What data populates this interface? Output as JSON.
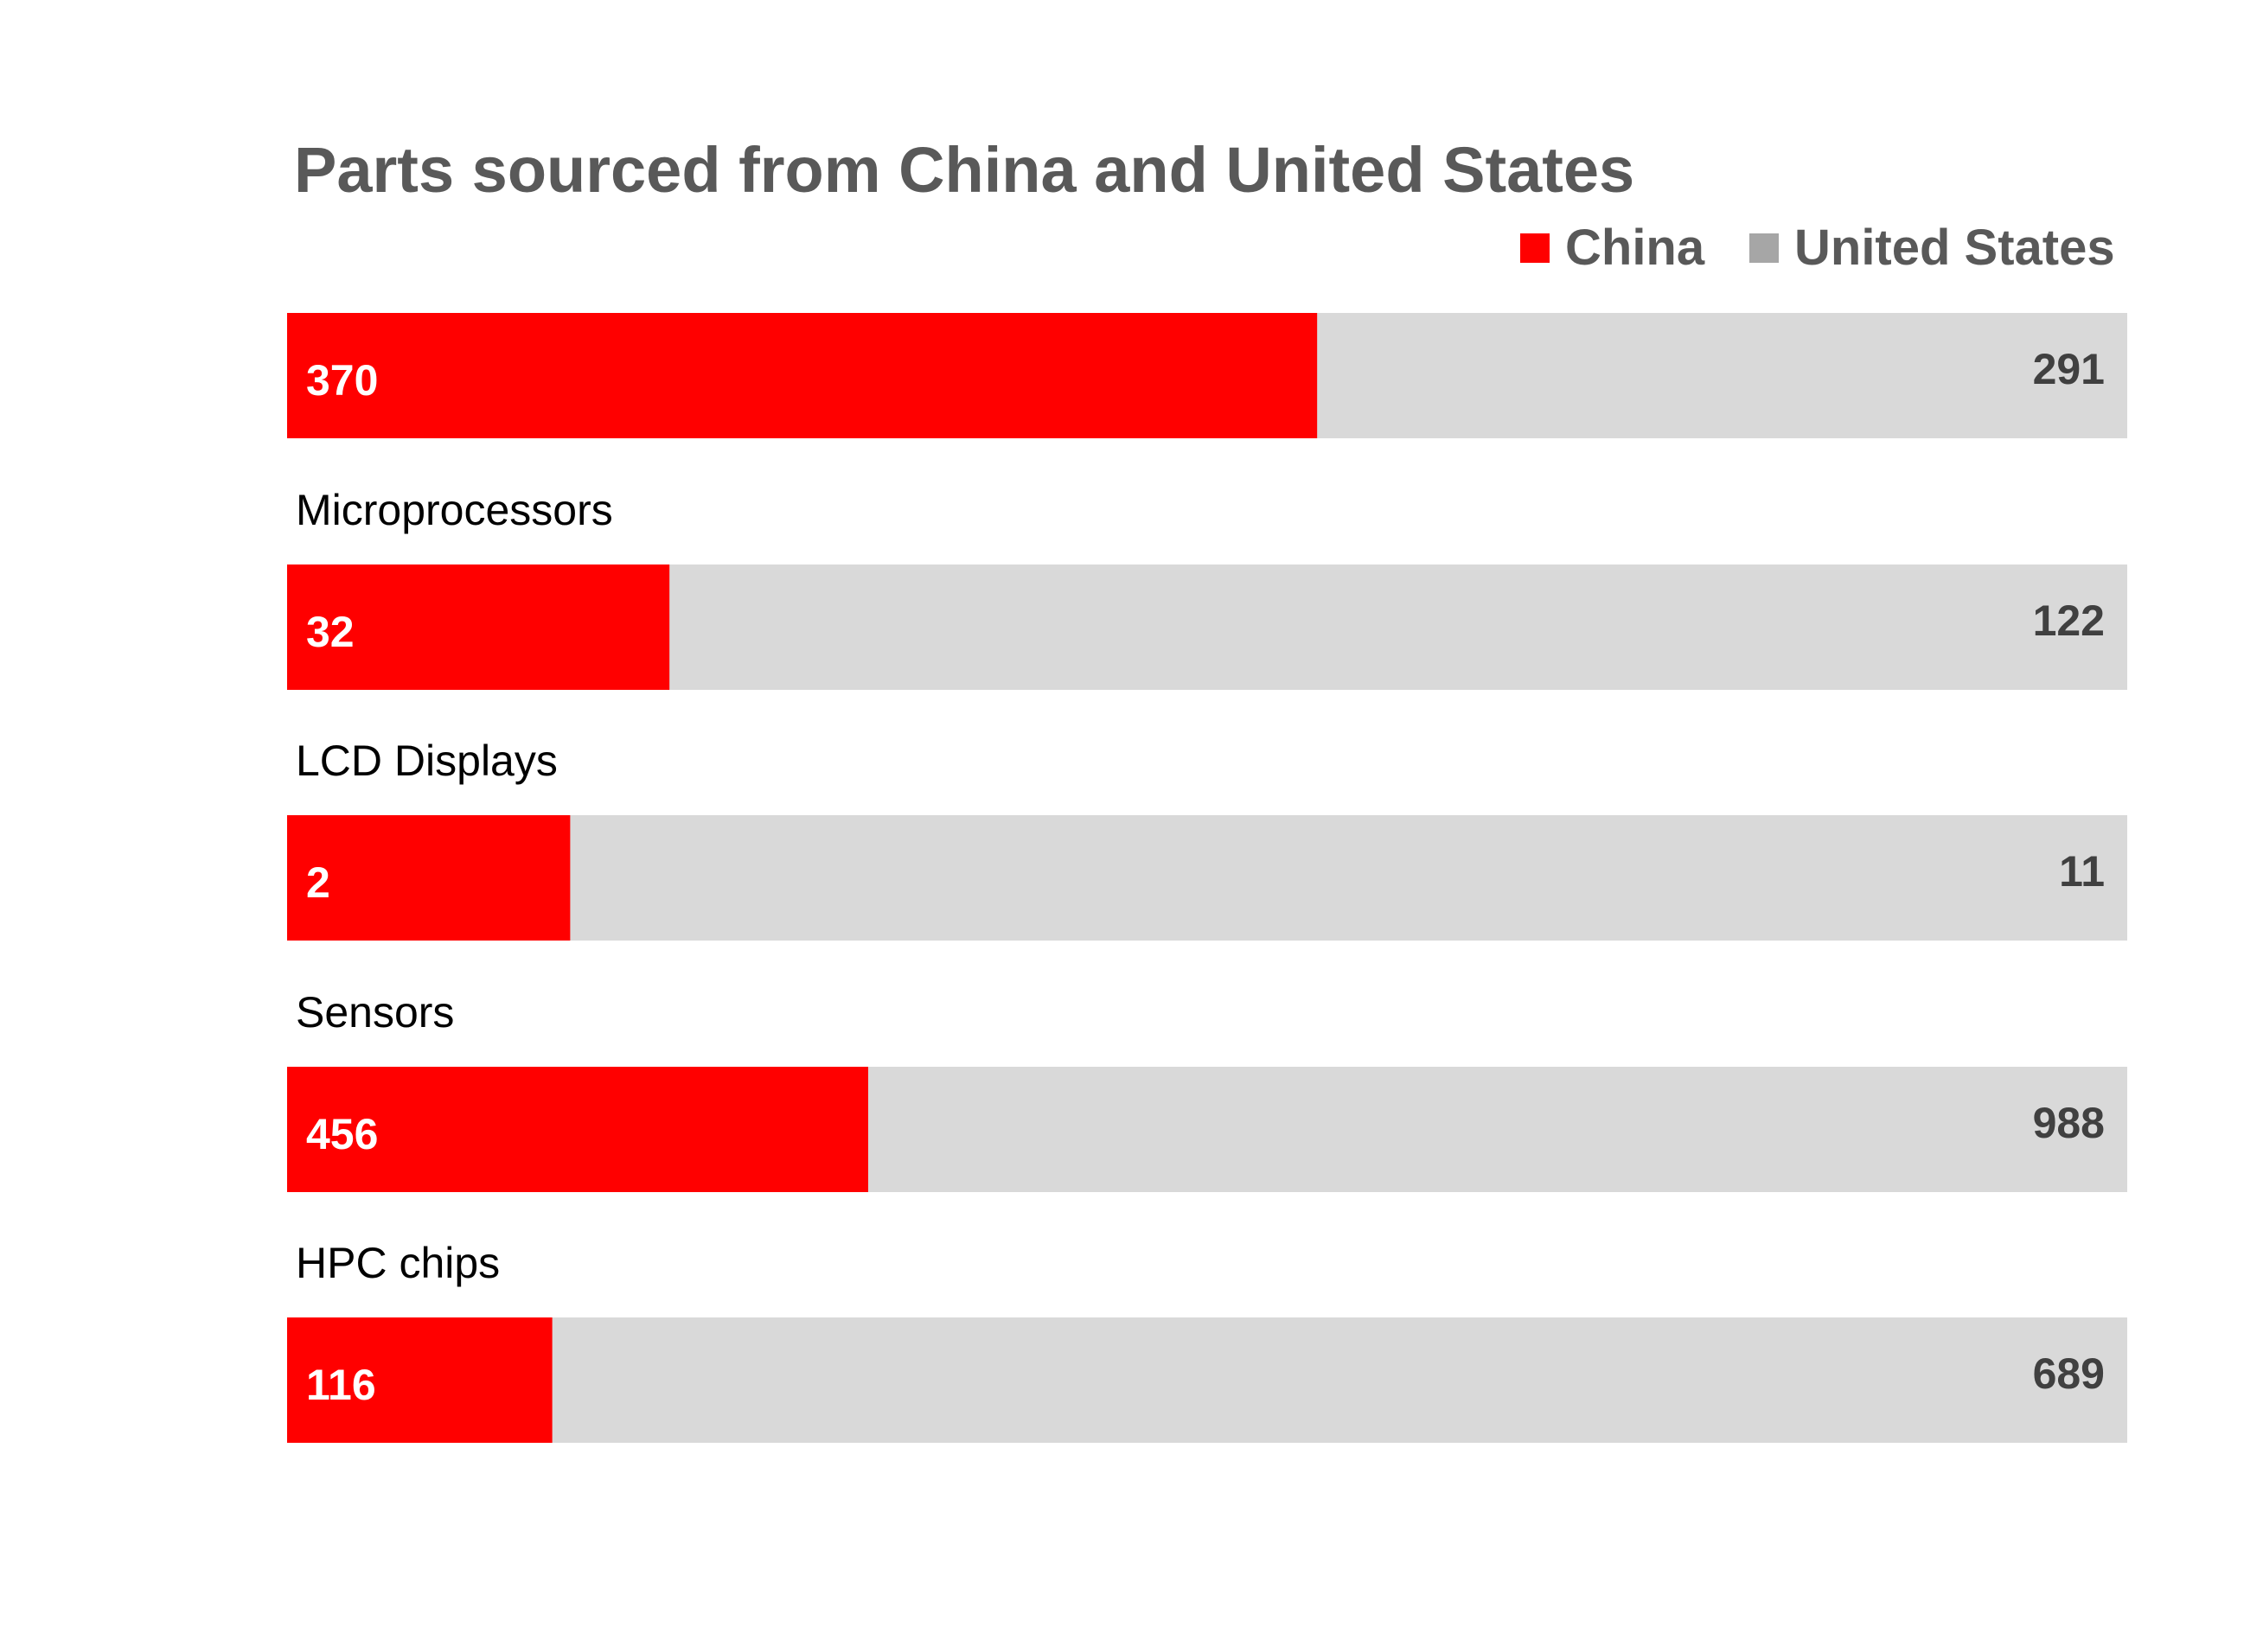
{
  "chart_data": {
    "type": "bar",
    "stacked": "proportional",
    "title": "Parts sourced from China and United States",
    "categories": [
      "",
      "Microprocessors",
      "LCD Displays",
      "Sensors",
      "HPC chips"
    ],
    "series": [
      {
        "name": "China",
        "values": [
          370,
          32,
          2,
          456,
          116
        ]
      },
      {
        "name": "United States",
        "values": [
          291,
          122,
          11,
          988,
          689
        ]
      }
    ],
    "legend_position": "top-right",
    "grid": false
  },
  "colors": {
    "china": "#ff0000",
    "united_states": "#d9d9d9",
    "united_states_legend": "#a6a6a6",
    "title": "#595959",
    "category_label": "#000000",
    "china_value_label": "#ffffff",
    "us_value_label": "#404040"
  }
}
